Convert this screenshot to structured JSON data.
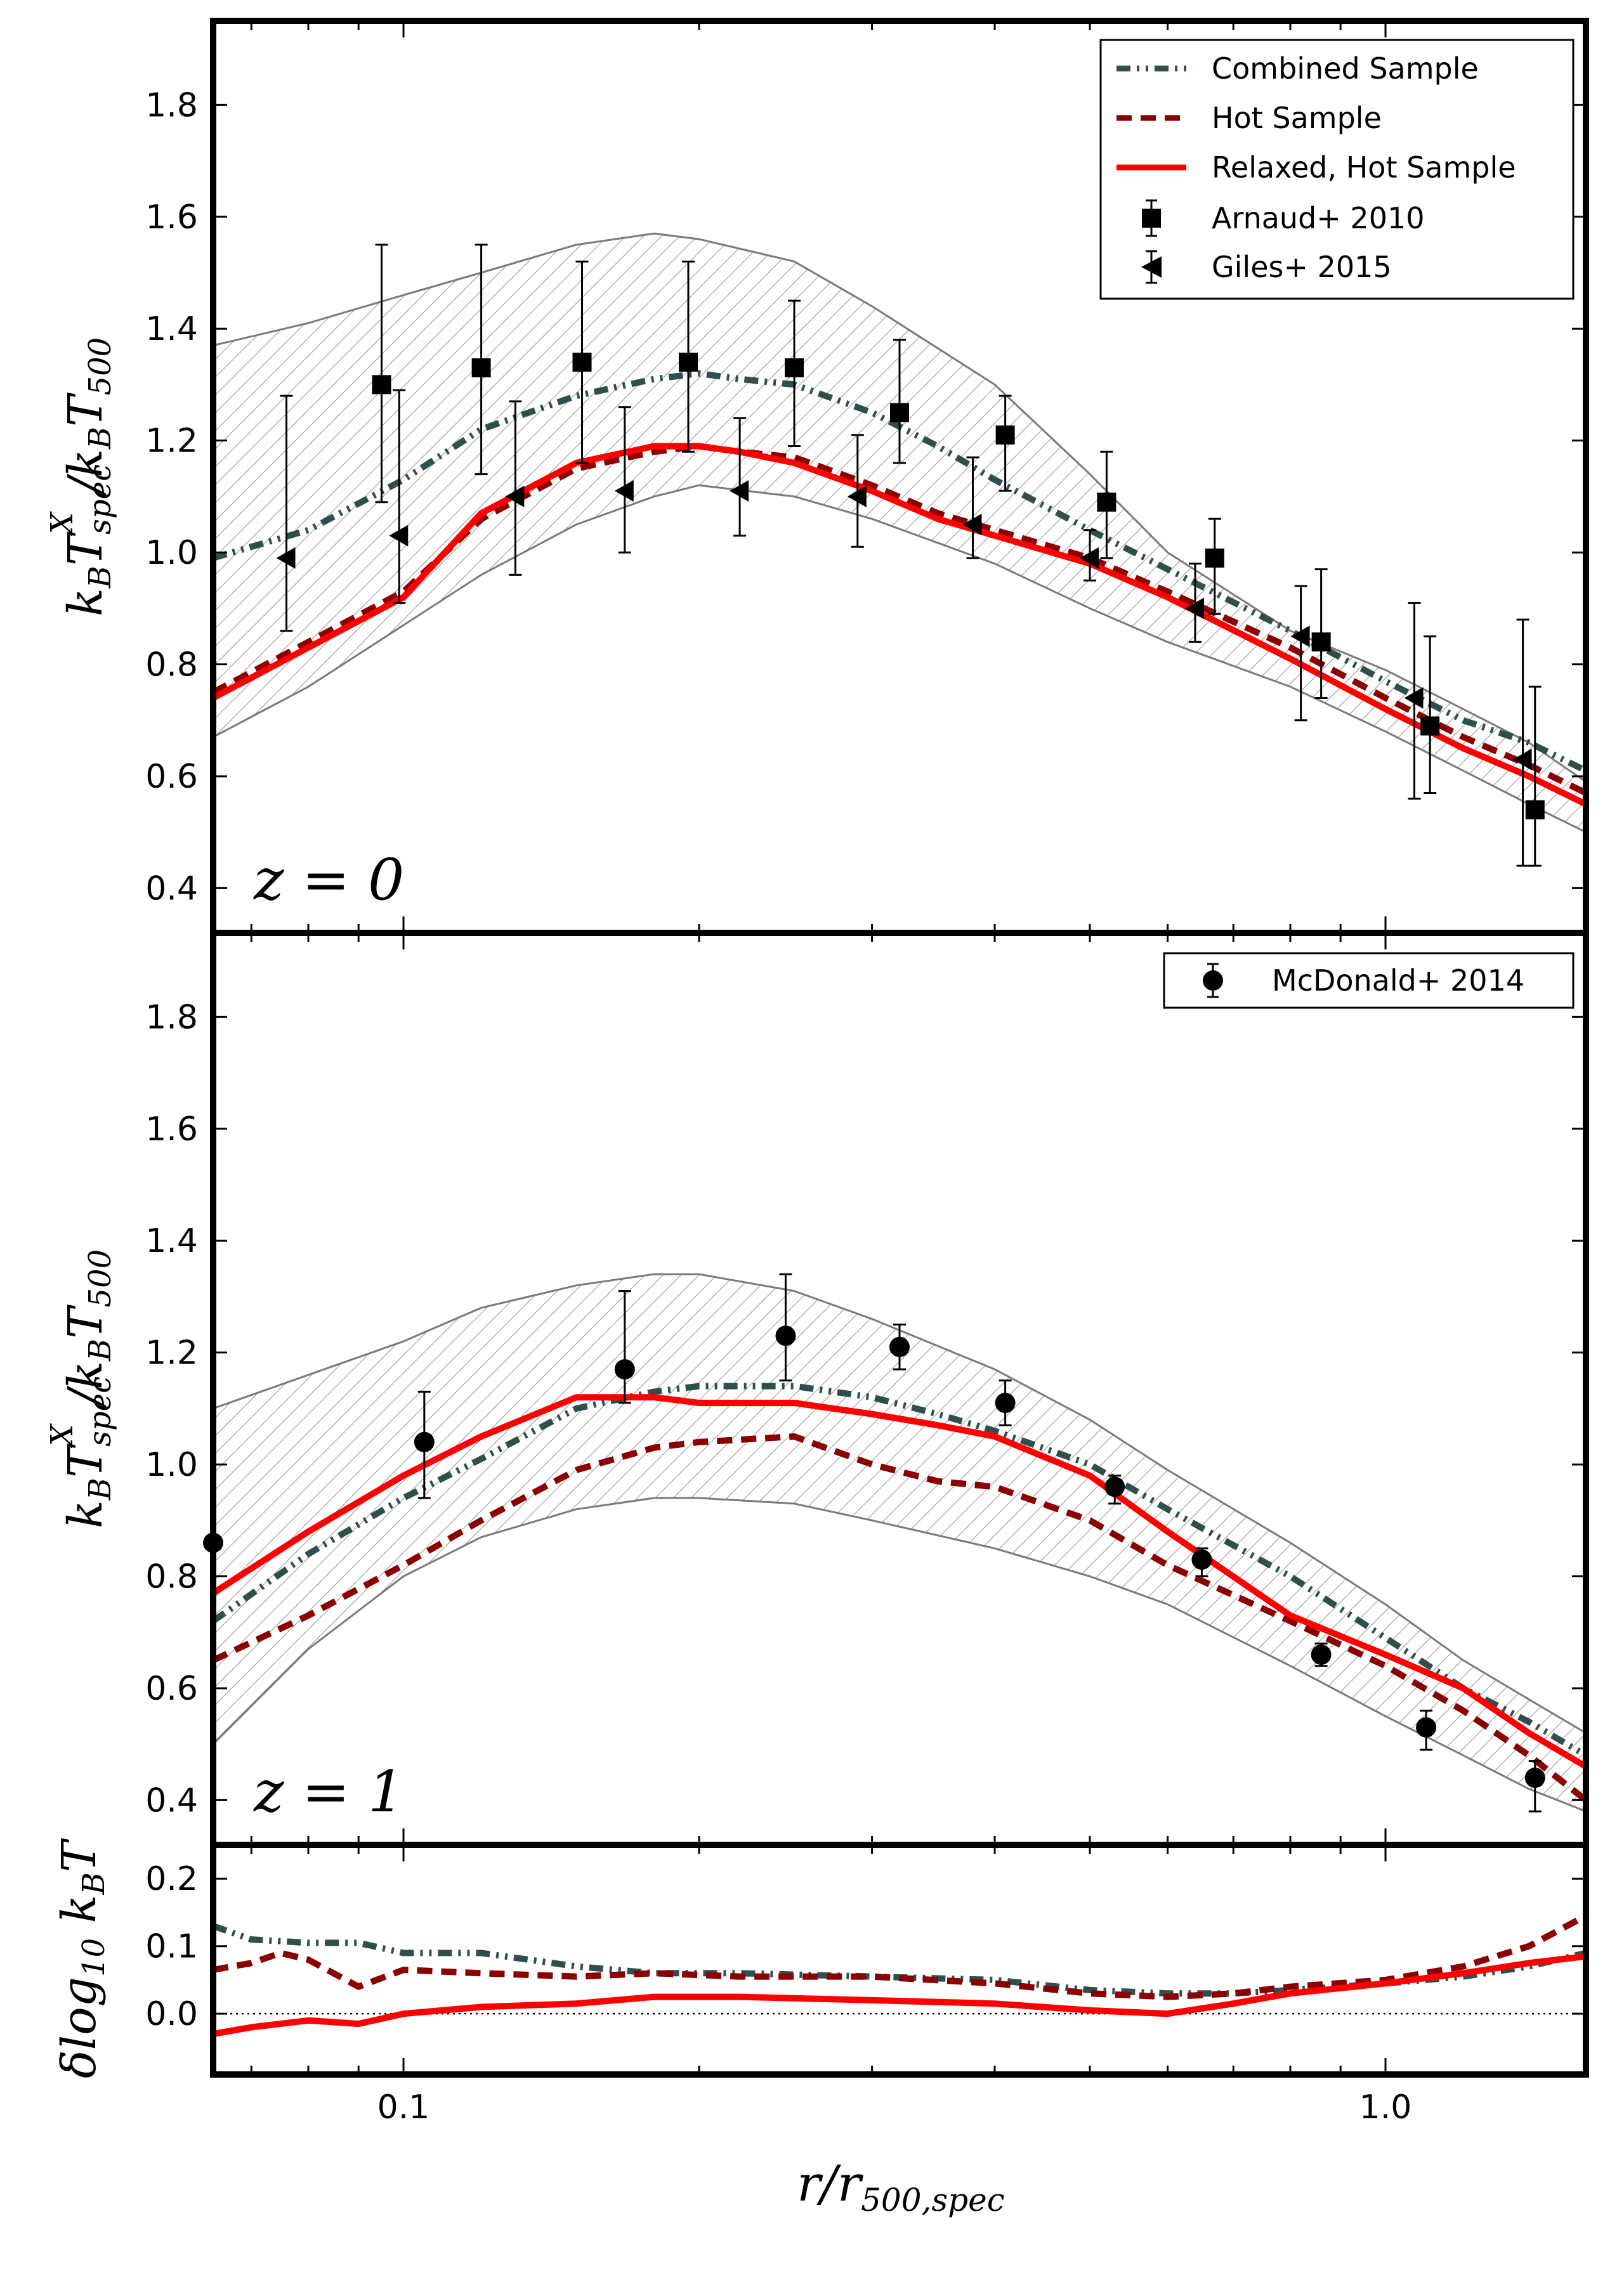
{
  "figure": {
    "xlabel": "r/r500,spec",
    "xlabel_main": "r/r",
    "xlabel_sub": "500,spec",
    "xticks": [
      0.1,
      1.0
    ],
    "xtick_labels": [
      "0.1",
      "1.0"
    ],
    "xlim": [
      0.064,
      1.6
    ],
    "xscale": "log"
  },
  "chart_data": [
    {
      "type": "line",
      "panel": "top",
      "annotation": "z = 0",
      "ylabel": "kB T^X_spec / kB T500",
      "ylim": [
        0.32,
        1.95
      ],
      "yticks": [
        0.4,
        0.6,
        0.8,
        1.0,
        1.2,
        1.4,
        1.6,
        1.8
      ],
      "ytick_labels": [
        "0.4",
        "0.6",
        "0.8",
        "1.0",
        "1.2",
        "1.4",
        "1.6",
        "1.8"
      ],
      "band": {
        "x": [
          0.064,
          0.08,
          0.1,
          0.12,
          0.15,
          0.18,
          0.2,
          0.25,
          0.3,
          0.4,
          0.5,
          0.6,
          0.8,
          1.0,
          1.2,
          1.4,
          1.6
        ],
        "upper": [
          1.37,
          1.41,
          1.46,
          1.5,
          1.55,
          1.57,
          1.56,
          1.52,
          1.44,
          1.3,
          1.14,
          1.0,
          0.86,
          0.79,
          0.72,
          0.66,
          0.59
        ],
        "lower": [
          0.67,
          0.76,
          0.87,
          0.96,
          1.05,
          1.1,
          1.12,
          1.1,
          1.06,
          0.98,
          0.9,
          0.84,
          0.76,
          0.68,
          0.61,
          0.55,
          0.5
        ]
      },
      "series": [
        {
          "name": "Combined Sample",
          "style": "dash-dot",
          "color": "#2f4f4f",
          "x": [
            0.064,
            0.08,
            0.1,
            0.12,
            0.15,
            0.18,
            0.2,
            0.22,
            0.25,
            0.3,
            0.35,
            0.4,
            0.5,
            0.6,
            0.8,
            1.0,
            1.2,
            1.4,
            1.6
          ],
          "y": [
            0.99,
            1.04,
            1.13,
            1.22,
            1.28,
            1.31,
            1.32,
            1.31,
            1.3,
            1.25,
            1.19,
            1.13,
            1.04,
            0.97,
            0.86,
            0.77,
            0.7,
            0.66,
            0.61
          ]
        },
        {
          "name": "Hot Sample",
          "style": "dashed",
          "color": "#8b0000",
          "x": [
            0.064,
            0.08,
            0.1,
            0.12,
            0.15,
            0.18,
            0.2,
            0.22,
            0.25,
            0.3,
            0.35,
            0.4,
            0.5,
            0.6,
            0.8,
            1.0,
            1.2,
            1.4,
            1.6
          ],
          "y": [
            0.75,
            0.84,
            0.93,
            1.06,
            1.15,
            1.18,
            1.19,
            1.18,
            1.17,
            1.12,
            1.07,
            1.04,
            0.99,
            0.93,
            0.83,
            0.74,
            0.67,
            0.62,
            0.57
          ]
        },
        {
          "name": "Relaxed, Hot Sample",
          "style": "solid",
          "color": "#ff0000",
          "x": [
            0.064,
            0.08,
            0.1,
            0.12,
            0.15,
            0.18,
            0.2,
            0.22,
            0.25,
            0.3,
            0.35,
            0.4,
            0.5,
            0.6,
            0.8,
            1.0,
            1.2,
            1.4,
            1.6
          ],
          "y": [
            0.74,
            0.83,
            0.92,
            1.07,
            1.16,
            1.19,
            1.19,
            1.18,
            1.16,
            1.11,
            1.06,
            1.03,
            0.98,
            0.92,
            0.81,
            0.72,
            0.65,
            0.6,
            0.55
          ]
        }
      ],
      "points": [
        {
          "name": "Arnaud+ 2010",
          "marker": "square",
          "x": [
            0.095,
            0.12,
            0.152,
            0.195,
            0.25,
            0.32,
            0.41,
            0.52,
            0.67,
            0.86,
            1.11,
            1.42
          ],
          "y": [
            1.3,
            1.33,
            1.34,
            1.34,
            1.33,
            1.25,
            1.21,
            1.09,
            0.99,
            0.84,
            0.69,
            0.54
          ],
          "err_low": [
            1.09,
            1.14,
            1.16,
            1.18,
            1.19,
            1.16,
            1.11,
            0.99,
            0.89,
            0.74,
            0.57,
            0.44
          ],
          "err_high": [
            1.55,
            1.55,
            1.52,
            1.52,
            1.45,
            1.38,
            1.28,
            1.18,
            1.06,
            0.97,
            0.85,
            0.76
          ]
        },
        {
          "name": "Giles+ 2015",
          "marker": "triangle-left",
          "x": [
            0.076,
            0.099,
            0.13,
            0.168,
            0.22,
            0.29,
            0.38,
            0.5,
            0.64,
            0.82,
            1.07,
            1.38
          ],
          "y": [
            0.99,
            1.03,
            1.1,
            1.11,
            1.11,
            1.1,
            1.05,
            0.99,
            0.9,
            0.85,
            0.74,
            0.63
          ],
          "err_low": [
            0.86,
            0.91,
            0.96,
            1.0,
            1.03,
            1.01,
            0.99,
            0.95,
            0.84,
            0.7,
            0.56,
            0.44
          ],
          "err_high": [
            1.28,
            1.29,
            1.27,
            1.26,
            1.24,
            1.21,
            1.17,
            1.04,
            0.98,
            0.94,
            0.91,
            0.88
          ]
        }
      ],
      "legend": {
        "location": "top-right",
        "entries": [
          "Combined Sample",
          "Hot Sample",
          "Relaxed, Hot Sample",
          "Arnaud+ 2010",
          "Giles+ 2015"
        ]
      }
    },
    {
      "type": "line",
      "panel": "middle",
      "annotation": "z = 1",
      "ylabel": "kB T^X_spec / kB T500",
      "ylim": [
        0.32,
        1.95
      ],
      "yticks": [
        0.4,
        0.6,
        0.8,
        1.0,
        1.2,
        1.4,
        1.6,
        1.8
      ],
      "ytick_labels": [
        "0.4",
        "0.6",
        "0.8",
        "1.0",
        "1.2",
        "1.4",
        "1.6",
        "1.8"
      ],
      "band": {
        "x": [
          0.064,
          0.08,
          0.1,
          0.12,
          0.15,
          0.18,
          0.2,
          0.25,
          0.3,
          0.4,
          0.5,
          0.6,
          0.8,
          1.0,
          1.2,
          1.4,
          1.6
        ],
        "upper": [
          1.1,
          1.16,
          1.22,
          1.28,
          1.32,
          1.34,
          1.34,
          1.31,
          1.26,
          1.17,
          1.08,
          0.99,
          0.86,
          0.75,
          0.65,
          0.58,
          0.52
        ],
        "lower": [
          0.5,
          0.67,
          0.8,
          0.87,
          0.92,
          0.94,
          0.94,
          0.93,
          0.9,
          0.85,
          0.8,
          0.75,
          0.64,
          0.55,
          0.48,
          0.42,
          0.38
        ]
      },
      "series": [
        {
          "name": "Combined Sample",
          "style": "dash-dot",
          "color": "#2f4f4f",
          "x": [
            0.064,
            0.08,
            0.1,
            0.12,
            0.15,
            0.18,
            0.2,
            0.25,
            0.3,
            0.35,
            0.4,
            0.5,
            0.6,
            0.8,
            1.0,
            1.2,
            1.4,
            1.6
          ],
          "y": [
            0.72,
            0.84,
            0.94,
            1.01,
            1.1,
            1.13,
            1.14,
            1.14,
            1.12,
            1.09,
            1.06,
            1.0,
            0.92,
            0.8,
            0.69,
            0.6,
            0.54,
            0.48
          ]
        },
        {
          "name": "Hot Sample",
          "style": "dashed",
          "color": "#8b0000",
          "x": [
            0.064,
            0.08,
            0.1,
            0.12,
            0.15,
            0.18,
            0.2,
            0.25,
            0.3,
            0.35,
            0.4,
            0.5,
            0.6,
            0.8,
            1.0,
            1.2,
            1.4,
            1.6
          ],
          "y": [
            0.65,
            0.73,
            0.82,
            0.9,
            0.99,
            1.03,
            1.04,
            1.05,
            1.0,
            0.97,
            0.96,
            0.9,
            0.82,
            0.72,
            0.64,
            0.56,
            0.48,
            0.4
          ]
        },
        {
          "name": "Relaxed, Hot Sample",
          "style": "solid",
          "color": "#ff0000",
          "x": [
            0.064,
            0.08,
            0.1,
            0.12,
            0.15,
            0.18,
            0.2,
            0.25,
            0.3,
            0.35,
            0.4,
            0.5,
            0.6,
            0.8,
            1.0,
            1.2,
            1.4,
            1.6
          ],
          "y": [
            0.77,
            0.88,
            0.98,
            1.05,
            1.12,
            1.12,
            1.11,
            1.11,
            1.09,
            1.07,
            1.05,
            0.98,
            0.88,
            0.73,
            0.66,
            0.6,
            0.52,
            0.46
          ]
        }
      ],
      "points": [
        {
          "name": "McDonald+ 2014",
          "marker": "circle",
          "x": [
            0.064,
            0.105,
            0.168,
            0.245,
            0.32,
            0.41,
            0.53,
            0.65,
            0.86,
            1.1,
            1.42
          ],
          "y": [
            0.86,
            1.04,
            1.17,
            1.23,
            1.21,
            1.11,
            0.96,
            0.83,
            0.66,
            0.53,
            0.44
          ],
          "err_low": [
            0.86,
            0.94,
            1.11,
            1.15,
            1.17,
            1.07,
            0.93,
            0.8,
            0.64,
            0.49,
            0.38
          ],
          "err_high": [
            0.86,
            1.13,
            1.31,
            1.34,
            1.25,
            1.15,
            0.98,
            0.85,
            0.68,
            0.56,
            0.47
          ]
        }
      ],
      "legend": {
        "location": "top-right",
        "entries": [
          "McDonald+ 2014"
        ]
      }
    },
    {
      "type": "line",
      "panel": "bottom",
      "ylabel": "δlog10 kB T",
      "ylim": [
        -0.09,
        0.25
      ],
      "yticks": [
        0.0,
        0.1,
        0.2
      ],
      "ytick_labels": [
        "0.0",
        "0.1",
        "0.2"
      ],
      "reference_line": 0.0,
      "series": [
        {
          "name": "Combined Sample",
          "style": "dash-dot",
          "color": "#2f4f4f",
          "x": [
            0.064,
            0.07,
            0.08,
            0.09,
            0.1,
            0.12,
            0.15,
            0.18,
            0.22,
            0.3,
            0.4,
            0.5,
            0.6,
            0.7,
            0.8,
            1.0,
            1.2,
            1.4,
            1.6
          ],
          "y": [
            0.13,
            0.11,
            0.105,
            0.105,
            0.09,
            0.09,
            0.07,
            0.06,
            0.06,
            0.055,
            0.05,
            0.035,
            0.03,
            0.03,
            0.035,
            0.045,
            0.055,
            0.07,
            0.09
          ]
        },
        {
          "name": "Hot Sample",
          "style": "dashed",
          "color": "#8b0000",
          "x": [
            0.064,
            0.07,
            0.075,
            0.08,
            0.09,
            0.1,
            0.12,
            0.15,
            0.18,
            0.22,
            0.3,
            0.4,
            0.5,
            0.6,
            0.7,
            0.8,
            1.0,
            1.2,
            1.4,
            1.6
          ],
          "y": [
            0.065,
            0.075,
            0.09,
            0.08,
            0.04,
            0.065,
            0.06,
            0.055,
            0.06,
            0.055,
            0.055,
            0.045,
            0.03,
            0.025,
            0.03,
            0.04,
            0.05,
            0.07,
            0.1,
            0.145
          ]
        },
        {
          "name": "Relaxed, Hot Sample",
          "style": "solid",
          "color": "#ff0000",
          "x": [
            0.064,
            0.07,
            0.08,
            0.09,
            0.1,
            0.12,
            0.15,
            0.18,
            0.22,
            0.3,
            0.4,
            0.5,
            0.6,
            0.7,
            0.8,
            1.0,
            1.2,
            1.4,
            1.6
          ],
          "y": [
            -0.03,
            -0.02,
            -0.01,
            -0.015,
            0.0,
            0.01,
            0.015,
            0.025,
            0.025,
            0.02,
            0.015,
            0.005,
            0.0,
            0.015,
            0.03,
            0.045,
            0.06,
            0.075,
            0.085
          ]
        }
      ]
    }
  ]
}
